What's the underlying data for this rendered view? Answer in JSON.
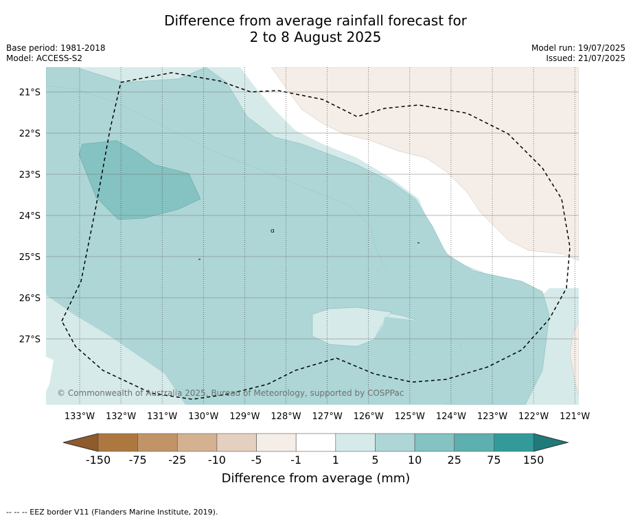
{
  "header": {
    "title_line1": "Difference from average rainfall forecast for",
    "title_line2": "2 to 8 August 2025"
  },
  "meta": {
    "base_period": "Base period: 1981-2018",
    "model": "Model: ACCESS-S2",
    "model_run": "Model run: 19/07/2025",
    "issued": "Issued: 21/07/2025"
  },
  "map": {
    "lon_labels": [
      "133°W",
      "132°W",
      "131°W",
      "130°W",
      "129°W",
      "128°W",
      "127°W",
      "126°W",
      "125°W",
      "124°W",
      "123°W",
      "122°W",
      "121°W"
    ],
    "lat_labels": [
      "21°S",
      "22°S",
      "23°S",
      "24°S",
      "25°S",
      "26°S",
      "27°S"
    ],
    "copyright": "© Commonwealth of Australia 2025, Bureau of Meteorology, supported by COSPPac"
  },
  "colorbar": {
    "labels": [
      "-150",
      "-75",
      "-25",
      "-10",
      "-5",
      "-1",
      "1",
      "5",
      "10",
      "25",
      "75",
      "150"
    ],
    "colors": [
      "#ad7840",
      "#c19468",
      "#d4b190",
      "#e4d0bf",
      "#f5eee8",
      "#ffffff",
      "#d6eaea",
      "#aed6d6",
      "#85c2c2",
      "#5eafaf",
      "#339a9a"
    ],
    "low_extend_color": "#8f5a2c",
    "high_extend_color": "#1f7a7a",
    "title": "Difference from average (mm)"
  },
  "footer": {
    "eez_note": "--  --  -- EEZ border V11 (Flanders Marine Institute, 2019)."
  }
}
